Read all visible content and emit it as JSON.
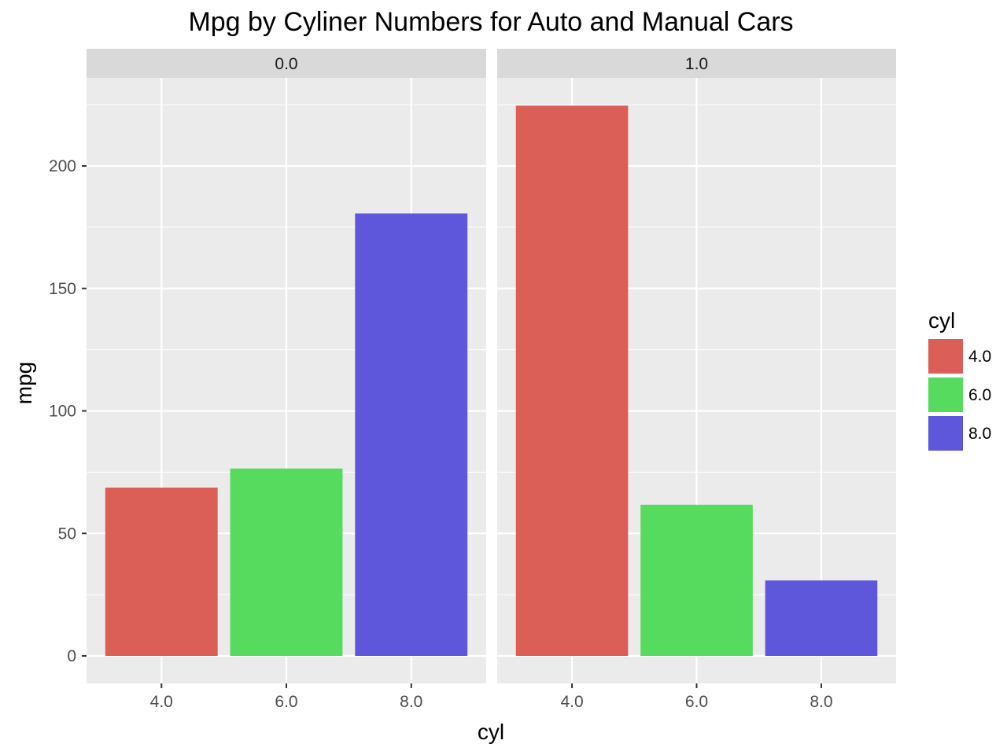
{
  "chart_data": {
    "type": "bar",
    "title": "Mpg by Cyliner Numbers for Auto and Manual Cars",
    "xlabel": "cyl",
    "ylabel": "mpg",
    "categories": [
      "4.0",
      "6.0",
      "8.0"
    ],
    "ylim": [
      0,
      235
    ],
    "yticks": [
      0,
      50,
      100,
      150,
      200
    ],
    "grid": true,
    "facets": [
      {
        "label": "0.0",
        "values": [
          68.7,
          76.5,
          180.6
        ]
      },
      {
        "label": "1.0",
        "values": [
          224.6,
          61.7,
          30.8
        ]
      }
    ],
    "legend": {
      "title": "cyl",
      "position": "right",
      "entries": [
        "4.0",
        "6.0",
        "8.0"
      ]
    },
    "colors": [
      "#db5f57",
      "#57db5f",
      "#5f57db"
    ],
    "panel_background": "#ebebeb",
    "strip_background": "#d9d9d9",
    "gridline_color": "#ffffff"
  }
}
